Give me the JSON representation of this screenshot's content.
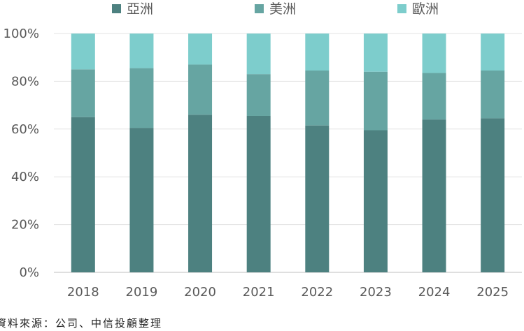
{
  "chart_data": {
    "type": "bar",
    "stacked": true,
    "categories": [
      "2018",
      "2019",
      "2020",
      "2021",
      "2022",
      "2023",
      "2024",
      "2025"
    ],
    "series": [
      {
        "name": "亞洲",
        "color": "#4d8180",
        "values": [
          65,
          60.5,
          66,
          65.5,
          61.5,
          59.5,
          64,
          64.5
        ]
      },
      {
        "name": "美洲",
        "color": "#66a5a2",
        "values": [
          20,
          25,
          21,
          17.5,
          23,
          24.5,
          19.5,
          20
        ]
      },
      {
        "name": "歐洲",
        "color": "#7dcdcc",
        "values": [
          15,
          14.5,
          13,
          17,
          15.5,
          16,
          16.5,
          15.5
        ]
      }
    ],
    "yticks": [
      "0%",
      "20%",
      "40%",
      "60%",
      "80%",
      "100%"
    ],
    "ylim": [
      0,
      100
    ],
    "grid": true,
    "legend": "top"
  },
  "source": "資料來源：公司、中信投顧整理"
}
